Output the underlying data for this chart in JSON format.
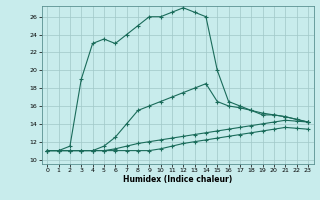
{
  "xlabel": "Humidex (Indice chaleur)",
  "ylabel": "",
  "bg_color": "#c8ecec",
  "line_color": "#1a6b5a",
  "grid_color": "#a0c8c8",
  "xlim": [
    -0.5,
    23.5
  ],
  "ylim": [
    9.5,
    27.2
  ],
  "xticks": [
    0,
    1,
    2,
    3,
    4,
    5,
    6,
    7,
    8,
    9,
    10,
    11,
    12,
    13,
    14,
    15,
    16,
    17,
    18,
    19,
    20,
    21,
    22,
    23
  ],
  "yticks": [
    10,
    12,
    14,
    16,
    18,
    20,
    22,
    24,
    26
  ],
  "line1_x": [
    0,
    1,
    2,
    3,
    4,
    5,
    6,
    7,
    8,
    9,
    10,
    11,
    12,
    13,
    14,
    15,
    16,
    17,
    18,
    19,
    20,
    21,
    22,
    23
  ],
  "line1_y": [
    11,
    11,
    11,
    11,
    11,
    11,
    11,
    11,
    11,
    11,
    11.2,
    11.5,
    11.8,
    12,
    12.2,
    12.4,
    12.6,
    12.8,
    13,
    13.2,
    13.4,
    13.6,
    13.5,
    13.4
  ],
  "line2_x": [
    0,
    1,
    2,
    3,
    4,
    5,
    6,
    7,
    8,
    9,
    10,
    11,
    12,
    13,
    14,
    15,
    16,
    17,
    18,
    19,
    20,
    21,
    22,
    23
  ],
  "line2_y": [
    11,
    11,
    11,
    11,
    11,
    11,
    11.2,
    11.5,
    11.8,
    12,
    12.2,
    12.4,
    12.6,
    12.8,
    13,
    13.2,
    13.4,
    13.6,
    13.8,
    14,
    14.2,
    14.4,
    14.3,
    14.2
  ],
  "line3_x": [
    0,
    1,
    2,
    3,
    4,
    5,
    6,
    7,
    8,
    9,
    10,
    11,
    12,
    13,
    14,
    15,
    16,
    17,
    18,
    19,
    20,
    21,
    22,
    23
  ],
  "line3_y": [
    11,
    11,
    11,
    11,
    11,
    11.5,
    12.5,
    14,
    15.5,
    16,
    16.5,
    17,
    17.5,
    18,
    18.5,
    16.5,
    16,
    15.8,
    15.5,
    15.2,
    15,
    14.8,
    14.5,
    14.2
  ],
  "line4_x": [
    0,
    1,
    2,
    3,
    4,
    5,
    6,
    7,
    8,
    9,
    10,
    11,
    12,
    13,
    14,
    15,
    16,
    17,
    18,
    19,
    20,
    21,
    22,
    23
  ],
  "line4_y": [
    11,
    11,
    11.5,
    19,
    23,
    23.5,
    23,
    24,
    25,
    26,
    26,
    26.5,
    27,
    26.5,
    26,
    20,
    16.5,
    16,
    15.5,
    15,
    15,
    14.8,
    14.5,
    14.2
  ]
}
